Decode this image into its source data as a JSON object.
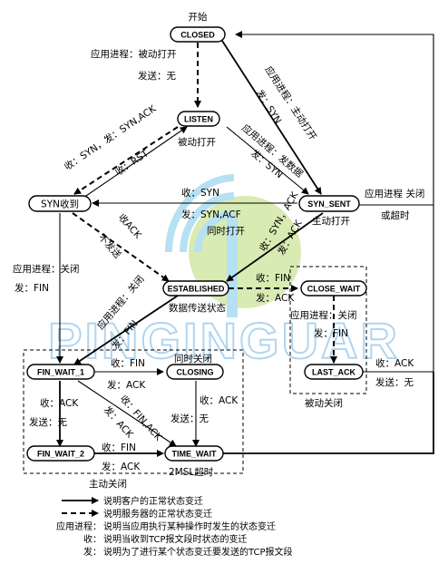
{
  "states": {
    "closed": "CLOSED",
    "listen": "LISTEN",
    "syn_rcvd": "SYN收到",
    "syn_sent": "SYN_SENT",
    "established": "ESTABLISHED",
    "close_wait": "CLOSE_WAIT",
    "fin_wait_1": "FIN_WAIT_1",
    "closing": "CLOSING",
    "last_ack": "LAST_ACK",
    "fin_wait_2": "FIN_WAIT_2",
    "time_wait": "TIME_WAIT"
  },
  "captions": {
    "start": "开始",
    "passive_open": "被动打开",
    "active_open": "主动打开",
    "simultaneous_open": "同时打开",
    "data_transfer": "数据传送状态",
    "simultaneous_close": "同时关闭",
    "msl_timeout": "2MSL超时",
    "active_close": "主动关闭",
    "passive_close": "被动关闭"
  },
  "labels": {
    "closed_listen_1": "应用进程：被动打开",
    "closed_listen_2": "发送：无",
    "closed_synsent_1": "应用进程：主动打开",
    "closed_synsent_2": "发：SYN",
    "listen_synrcvd_1": "收：SYN，发：SYN,ACK",
    "listen_synrcvd_2": "收：RST",
    "listen_synsent_1": "应用进程：发数据",
    "listen_synsent_2": "发：SYN",
    "synsent_closed_1": "应用进程 关闭",
    "synsent_closed_2": "或超时",
    "synsent_synrcvd_1": "收：SYN",
    "synsent_synrcvd_2": "发：SYN,ACF",
    "synsent_est_1": "收：SYN，ACK",
    "synsent_est_2": "发：ACK",
    "synrcvd_est_1": "收ACK",
    "synrcvd_est_2": "不发送",
    "synrcvd_fw1_1": "应用进程：关闭",
    "synrcvd_fw1_2": "发：FIN",
    "est_closewait_1": "收：FIN",
    "est_closewait_2": "发：ACK",
    "est_fw1_1": "应用进程：关闭",
    "est_fw1_2": "发：FIN",
    "closewait_lastack_1": "应用进程：关闭",
    "closewait_lastack_2": "发：FIN",
    "lastack_closed_1": "收：ACK",
    "lastack_closed_2": "发送：无",
    "fw1_closing_1": "收：FIN",
    "fw1_closing_2": "发：ACK",
    "fw1_fw2_1": "收：ACK",
    "fw1_fw2_2": "发送：无",
    "fw1_tw_1": "收：FIN,ACK",
    "fw1_tw_2": "发：ACK",
    "closing_tw_1": "收：ACK",
    "closing_tw_2": "发送：无",
    "fw2_tw_1": "收：FIN",
    "fw2_tw_2": "发：ACK"
  },
  "legend": {
    "client_line": "说明客户的正常状态变迁",
    "server_line": "说明服务器的正常状态变迁",
    "app_key": "应用进程：",
    "app_desc": "说明当应用执行某种操作时发生的状态变迁",
    "recv_key": "收：",
    "recv_desc": "说明当收到TCP报文段时状态的变迁",
    "send_key": "发：",
    "send_desc": "说明为了进行某个状态变迁要发送的TCP报文段"
  },
  "watermark": "PINGINGUAR"
}
